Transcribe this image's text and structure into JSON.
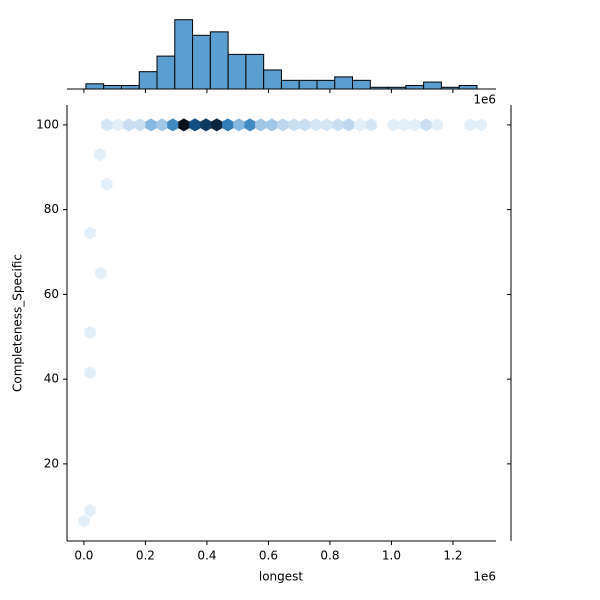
{
  "chart_data": [
    {
      "type": "hexbin",
      "x_label": "longest",
      "y_label": "Completeness_Specific",
      "x_offset_label": "1e6",
      "xlim": [
        -55000,
        1340000
      ],
      "ylim": [
        1.8,
        104.7
      ],
      "xticks": [
        {
          "value": 0,
          "label": "0.0"
        },
        {
          "value": 200000,
          "label": "0.2"
        },
        {
          "value": 400000,
          "label": "0.4"
        },
        {
          "value": 600000,
          "label": "0.6"
        },
        {
          "value": 800000,
          "label": "0.8"
        },
        {
          "value": 1000000,
          "label": "1.0"
        },
        {
          "value": 1200000,
          "label": "1.2"
        }
      ],
      "yticks": [
        20,
        40,
        60,
        80,
        100
      ],
      "colors": [
        "#eef5fb",
        "#bcd7ee",
        "#4f97cd",
        "#1562a2",
        "#08111c"
      ],
      "x": [
        75000,
        111000,
        146000,
        182000,
        218000,
        254000,
        289000,
        325000,
        361000,
        397000,
        432000,
        468000,
        504000,
        540000,
        575000,
        611000,
        647000,
        683000,
        718000,
        754000,
        790000,
        826000,
        861000,
        897000,
        934000,
        1006000,
        1042000,
        1077000,
        1113000,
        1149000,
        1256000,
        1292000,
        52000,
        75000,
        20000,
        55000,
        20000,
        20000,
        20000,
        0
      ],
      "y": [
        100,
        100,
        100,
        100,
        100,
        100,
        100,
        100,
        100,
        100,
        100,
        100,
        100,
        100,
        100,
        100,
        100,
        100,
        100,
        100,
        100,
        100,
        100,
        100,
        100,
        100,
        100,
        100,
        100,
        100,
        100,
        100,
        93,
        86,
        74.5,
        65,
        51,
        41.5,
        9,
        6.5
      ],
      "values": [
        2,
        1,
        3,
        3,
        6,
        5,
        9,
        16,
        13,
        14,
        15,
        10,
        6,
        9,
        5,
        5,
        4,
        3,
        3,
        2,
        2,
        3,
        4,
        1,
        2,
        1,
        1,
        1,
        3,
        1,
        1,
        1,
        1,
        1,
        1,
        1,
        1,
        1,
        1,
        1
      ]
    },
    {
      "type": "histogram",
      "color": "#5a9fcf",
      "edgecolor": "#000000",
      "xlim": [
        -55000,
        1340000
      ],
      "ylim": [
        0,
        41
      ],
      "bins": [
        6500,
        64300,
        122100,
        179900,
        237700,
        295500,
        353300,
        411100,
        468900,
        526700,
        584500,
        642300,
        700100,
        757900,
        815700,
        873500,
        931300,
        989100,
        1046900,
        1104700,
        1162500,
        1220300,
        1278100
      ],
      "values": [
        3,
        2,
        2,
        10,
        19,
        40,
        31,
        33,
        20,
        20,
        11,
        5,
        5,
        5,
        7,
        5,
        1,
        1,
        2,
        4,
        1,
        2
      ]
    }
  ]
}
